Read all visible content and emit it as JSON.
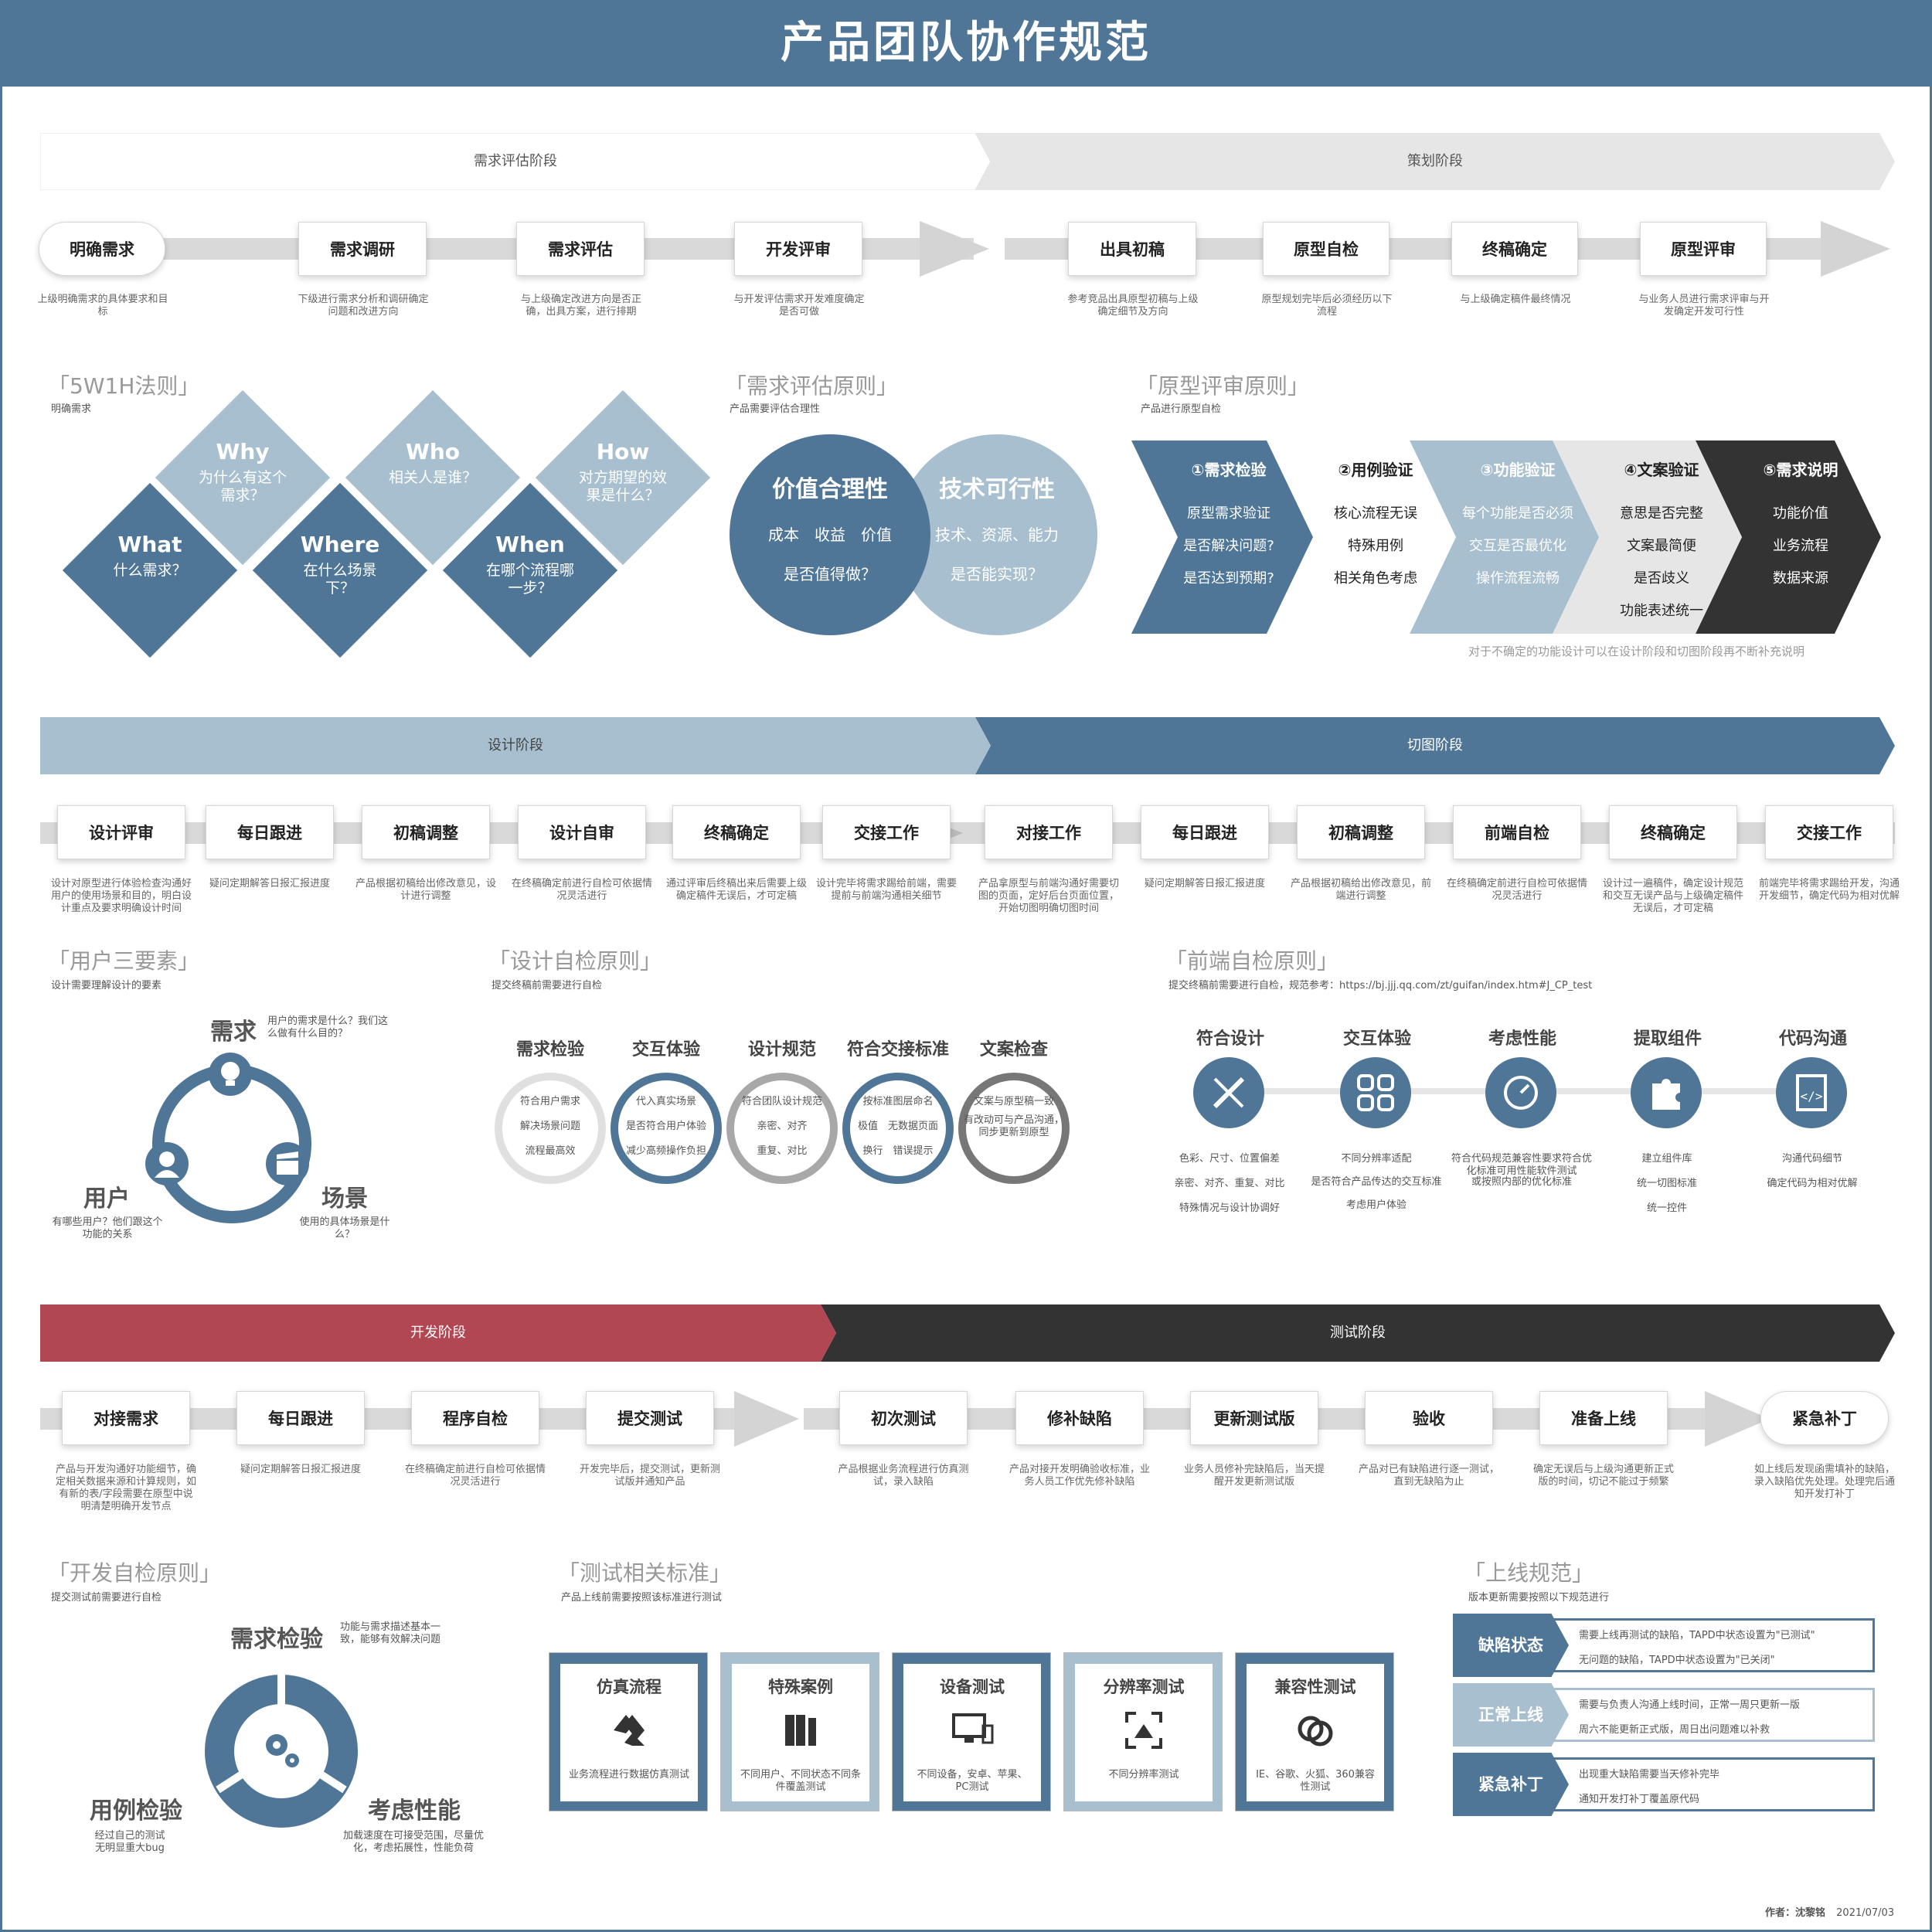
{
  "title": "产品团队协作规范",
  "colors": {
    "primary": "#4f7597",
    "light": "#a7bfce",
    "dark": "#333333",
    "red": "#b04752",
    "grey": "#e6e6e6"
  },
  "phases1": {
    "left": "需求评估阶段",
    "right": "策划阶段"
  },
  "row1": [
    {
      "label": "明确需求",
      "desc": "上级明确需求的具体要求和目标"
    },
    {
      "label": "需求调研",
      "desc": "下级进行需求分析和调研确定问题和改进方向"
    },
    {
      "label": "需求评估",
      "desc": "与上级确定改进方向是否正确，出具方案，进行排期"
    },
    {
      "label": "开发评审",
      "desc": "与开发评估需求开发难度确定是否可做"
    },
    {
      "label": "出具初稿",
      "desc": "参考竞品出具原型初稿与上级确定细节及方向"
    },
    {
      "label": "原型自检",
      "desc": "原型规划完毕后必须经历以下流程"
    },
    {
      "label": "终稿确定",
      "desc": "与上级确定稿件最终情况"
    },
    {
      "label": "原型评审",
      "desc": "与业务人员进行需求评审与开发确定开发可行性"
    }
  ],
  "w5h1": {
    "title": "「5W1H法则」",
    "sub": "明确需求",
    "items": [
      {
        "h": "Why",
        "s": "为什么有这个需求？"
      },
      {
        "h": "Who",
        "s": "相关人是谁？"
      },
      {
        "h": "How",
        "s": "对方期望的效果是什么？"
      },
      {
        "h": "What",
        "s": "什么需求？"
      },
      {
        "h": "Where",
        "s": "在什么场景下？"
      },
      {
        "h": "When",
        "s": "在哪个流程哪一步？"
      }
    ]
  },
  "evalp": {
    "title": "「需求评估原则」",
    "sub": "产品需要评估合理性",
    "c1": {
      "h": "价值合理性",
      "l1": "成本　收益　价值",
      "l2": "是否值得做？"
    },
    "c2": {
      "h": "技术可行性",
      "l1": "技术、资源、能力",
      "l2": "是否能实现？"
    }
  },
  "protop": {
    "title": "「原型评审原则」",
    "sub": "产品进行原型自检",
    "note": "对于不确定的功能设计可以在设计阶段和切图阶段再不断补充说明",
    "items": [
      {
        "h": "①需求检验",
        "lines": [
          "原型需求验证",
          "是否解决问题?",
          "是否达到预期?"
        ]
      },
      {
        "h": "②用例验证",
        "lines": [
          "核心流程无误",
          "特殊用例",
          "相关角色考虑"
        ]
      },
      {
        "h": "③功能验证",
        "lines": [
          "每个功能是否必须",
          "交互是否最优化",
          "操作流程流畅"
        ]
      },
      {
        "h": "④文案验证",
        "lines": [
          "意思是否完整",
          "文案最简便",
          "是否歧义",
          "功能表述统一"
        ]
      },
      {
        "h": "⑤需求说明",
        "lines": [
          "功能价值",
          "业务流程",
          "数据来源"
        ]
      }
    ]
  },
  "phases2": {
    "left": "设计阶段",
    "right": "切图阶段"
  },
  "row2": [
    {
      "label": "设计评审",
      "desc": "设计对原型进行体验检查沟通好用户的使用场景和目的，明白设计重点及要求明确设计时间"
    },
    {
      "label": "每日跟进",
      "desc": "疑问定期解答日报汇报进度"
    },
    {
      "label": "初稿调整",
      "desc": "产品根据初稿给出修改意见，设计进行调整"
    },
    {
      "label": "设计自审",
      "desc": "在终稿确定前进行自检可依据情况灵活进行"
    },
    {
      "label": "终稿确定",
      "desc": "通过评审后终稿出来后需要上级确定稿件无误后，才可定稿"
    },
    {
      "label": "交接工作",
      "desc": "设计完毕将需求踢给前端，需要提前与前端沟通相关细节"
    },
    {
      "label": "对接工作",
      "desc": "产品拿原型与前端沟通好需要切图的页面，定好后台页面位置，开始切图明确切图时间"
    },
    {
      "label": "每日跟进",
      "desc": "疑问定期解答日报汇报进度"
    },
    {
      "label": "初稿调整",
      "desc": "产品根据初稿给出修改意见，前端进行调整"
    },
    {
      "label": "前端自检",
      "desc": "在终稿确定前进行自检可依据情况灵活进行"
    },
    {
      "label": "终稿确定",
      "desc": "设计过一遍稿件，确定设计规范和交互无误产品与上级确定稿件无误后，才可定稿"
    },
    {
      "label": "交接工作",
      "desc": "前端完毕将需求踢给开发，沟通开发细节，确定代码为相对优解"
    }
  ],
  "user3": {
    "title": "「用户三要素」",
    "sub": "设计需要理解设计的要素",
    "need": {
      "h": "需求",
      "d": "用户的需求是什么？我们这么做有什么目的？"
    },
    "user": {
      "h": "用户",
      "d": "有哪些用户？他们跟这个功能的关系"
    },
    "scene": {
      "h": "场景",
      "d": "使用的具体场景是什么？"
    }
  },
  "designp": {
    "title": "「设计自检原则」",
    "sub": "提交终稿前需要进行自检",
    "items": [
      {
        "h": "需求检验",
        "lines": [
          "符合用户需求",
          "解决场景问题",
          "流程最高效"
        ],
        "color": "#e0e0e0"
      },
      {
        "h": "交互体验",
        "lines": [
          "代入真实场景",
          "是否符合用户体验",
          "减少高频操作负担"
        ],
        "color": "#4f7597"
      },
      {
        "h": "设计规范",
        "lines": [
          "符合团队设计规范",
          "亲密、对齐",
          "重复、对比"
        ],
        "color": "#a8a8a8"
      },
      {
        "h": "符合交接标准",
        "lines": [
          "按标准图层命名",
          "极值　无数据页面",
          "换行　错误提示"
        ],
        "color": "#4f7597"
      },
      {
        "h": "文案检查",
        "lines": [
          "文案与原型稿一致",
          "有改动可与产品沟通，同步更新到原型"
        ],
        "color": "#777777"
      }
    ]
  },
  "fep": {
    "title": "「前端自检原则」",
    "sub": "提交终稿前需要进行自检，规范参考：https://bj.jjj.qq.com/zt/guifan/index.htm#J_CP_test",
    "items": [
      {
        "h": "符合设计",
        "icon": "ruler-pencil-icon",
        "lines": [
          "色彩、尺寸、位置偏差",
          "亲密、对齐、重复、对比",
          "特殊情况与设计协调好"
        ]
      },
      {
        "h": "交互体验",
        "icon": "grid-icon",
        "lines": [
          "不同分辨率适配",
          "是否符合产品传达的交互标准",
          "考虑用户体验"
        ]
      },
      {
        "h": "考虑性能",
        "icon": "gauge-icon",
        "lines": [
          "符合代码规范兼容性要求符合优化标准可用性能软件测试",
          "或按照内部的优化标准"
        ]
      },
      {
        "h": "提取组件",
        "icon": "puzzle-icon",
        "lines": [
          "建立组件库",
          "统一切图标准",
          "统一控件"
        ]
      },
      {
        "h": "代码沟通",
        "icon": "code-doc-icon",
        "lines": [
          "沟通代码细节",
          "确定代码为相对优解"
        ]
      }
    ]
  },
  "phases3": {
    "left": "开发阶段",
    "right": "测试阶段"
  },
  "row3": [
    {
      "label": "对接需求",
      "desc": "产品与开发沟通好功能细节，确定相关数据来源和计算规则，如有新的表/字段需要在原型中说明清楚明确开发节点"
    },
    {
      "label": "每日跟进",
      "desc": "疑问定期解答日报汇报进度"
    },
    {
      "label": "程序自检",
      "desc": "在终稿确定前进行自检可依据情况灵活进行"
    },
    {
      "label": "提交测试",
      "desc": "开发完毕后，提交测试，更新测试版并通知产品"
    },
    {
      "label": "初次测试",
      "desc": "产品根据业务流程进行仿真测试，录入缺陷"
    },
    {
      "label": "修补缺陷",
      "desc": "产品对接开发明确验收标准，业务人员工作优先修补缺陷"
    },
    {
      "label": "更新测试版",
      "desc": "业务人员修补完缺陷后，当天提醒开发更新测试版"
    },
    {
      "label": "验收",
      "desc": "产品对已有缺陷进行逐一测试，直到无缺陷为止"
    },
    {
      "label": "准备上线",
      "desc": "确定无误后与上级沟通更新正式版的时间，切记不能过于频繁"
    },
    {
      "label": "紧急补丁",
      "desc": "如上线后发现函需填补的缺陷，录入缺陷优先处理。处理完后通知开发打补丁"
    }
  ],
  "devp": {
    "title": "「开发自检原则」",
    "sub": "提交测试前需要进行自检",
    "need": {
      "h": "需求检验",
      "d": "功能与需求描述基本一致，能够有效解决问题"
    },
    "case": {
      "h": "用例检验",
      "d": "经过自己的测试无明显重大bug"
    },
    "perf": {
      "h": "考虑性能",
      "d": "加载速度在可接受范围，尽量优化，考虑拓展性，性能负荷"
    }
  },
  "testp": {
    "title": "「测试相关标准」",
    "sub": "产品上线前需要按照该标准进行测试",
    "items": [
      {
        "h": "仿真流程",
        "d": "业务流程进行数据仿真测试",
        "icon": "flow-icon",
        "color": "#4f7597"
      },
      {
        "h": "特殊案例",
        "d": "不同用户、不同状态不同条件覆盖测试",
        "icon": "books-icon",
        "color": "#a7bfce"
      },
      {
        "h": "设备测试",
        "d": "不同设备，安卓、苹果、PC测试",
        "icon": "devices-icon",
        "color": "#4f7597"
      },
      {
        "h": "分辨率测试",
        "d": "不同分辨率测试",
        "icon": "resolution-icon",
        "color": "#a7bfce"
      },
      {
        "h": "兼容性测试",
        "d": "IE、谷歌、火狐、360兼容性测试",
        "icon": "compat-icon",
        "color": "#4f7597"
      }
    ]
  },
  "launch": {
    "title": "「上线规范」",
    "sub": "版本更新需要按照以下规范进行",
    "items": [
      {
        "h": "缺陷状态",
        "l1": "需要上线再测试的缺陷，TAPD中状态设置为\"已测试\"",
        "l2": "无问题的缺陷，TAPD中状态设置为\"已关闭\"",
        "color": "#4f7597"
      },
      {
        "h": "正常上线",
        "l1": "需要与负责人沟通上线时间，正常一周只更新一版",
        "l2": "周六不能更新正式版，周日出问题难以补救",
        "color": "#a7bfce"
      },
      {
        "h": "紧急补丁",
        "l1": "出现重大缺陷需要当天修补完毕",
        "l2": "通知开发打补丁覆盖原代码",
        "color": "#4f7597"
      }
    ]
  },
  "footer": {
    "author": "作者：沈黎铭",
    "date": "2021/07/03"
  }
}
